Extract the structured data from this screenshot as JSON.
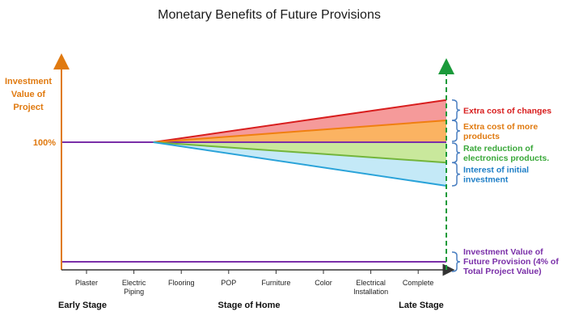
{
  "chart_data": {
    "type": "area",
    "title": "Monetary Benefits of Future Provisions",
    "ylabel_lines": [
      "Investment",
      "Value of",
      "Project"
    ],
    "y_reference_label": "100%",
    "categories": [
      "Plaster",
      "Electric Piping",
      "Flooring",
      "POP",
      "Furniture",
      "Color",
      "Electrical Installation",
      "Complete"
    ],
    "category_lines": [
      [
        "Plaster"
      ],
      [
        "Electric",
        "Piping"
      ],
      [
        "Flooring"
      ],
      [
        "POP"
      ],
      [
        "Furniture"
      ],
      [
        "Color"
      ],
      [
        "Electrical",
        "Installation"
      ],
      [
        "Complete"
      ]
    ],
    "x_stage_labels": {
      "left": "Early Stage",
      "center": "Stage of Home",
      "right": "Late Stage"
    },
    "baseline_value": 100,
    "divergence_start_category": "Electric Piping",
    "end_values": {
      "extra_cost_of_changes_top": 129,
      "extra_cost_of_more_products_top": 115,
      "rate_reduction_bottom": 86,
      "interest_bottom": 70
    },
    "bands": [
      {
        "name": "Extra cost of changes",
        "color": "#f59a9a",
        "edge_color": "#d81e1e",
        "label_color": "#d81e1e",
        "label_lines": [
          "Extra cost of changes"
        ]
      },
      {
        "name": "Extra cost of more products",
        "color": "#fbb362",
        "edge_color": "#f07f10",
        "label_color": "#e07a10",
        "label_lines": [
          "Extra cost of more",
          "products"
        ]
      },
      {
        "name": "Rate reduction of electronics products.",
        "color": "#c9e89c",
        "edge_color": "#73b53b",
        "label_color": "#3aa83a",
        "label_lines": [
          "Rate reduction of",
          "electronics products."
        ]
      },
      {
        "name": "Interest of initial investment",
        "color": "#c4e9f7",
        "edge_color": "#2aa3d9",
        "label_color": "#1f7fc7",
        "label_lines": [
          "Interest of initial",
          "investment"
        ]
      }
    ],
    "future_provision": {
      "value_percent": 4,
      "label_lines": [
        "Investment Value of",
        "Future Provision (4% of",
        "Total Project Value)"
      ],
      "color": "#7a2fa8"
    },
    "colors": {
      "axis": "#e07a10",
      "baseline": "#7a2fa8",
      "late_stage_marker": "#1a9a3a"
    }
  }
}
